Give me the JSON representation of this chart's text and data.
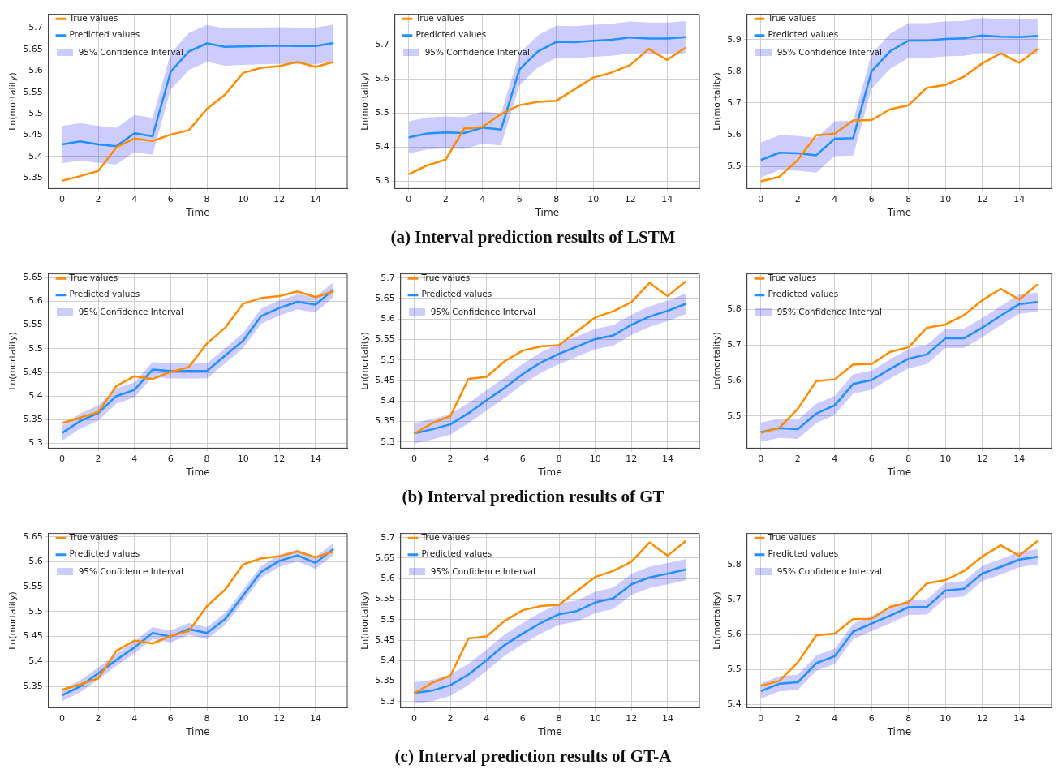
{
  "chart_data": [
    {
      "type": "line",
      "xlabel": "Time",
      "ylabel": "Ln(mortality)",
      "annotations": [
        "95% Confidence Interval"
      ],
      "x": [
        0,
        1,
        2,
        3,
        4,
        5,
        6,
        7,
        8,
        9,
        10,
        11,
        12,
        13,
        14,
        15
      ],
      "xlim": [
        -0.75,
        15.75
      ],
      "xticks": [
        0,
        2,
        4,
        6,
        8,
        10,
        12,
        14
      ],
      "ylim": [
        5.325,
        5.732
      ],
      "yticks": [
        5.35,
        5.4,
        5.45,
        5.5,
        5.55,
        5.6,
        5.65,
        5.7
      ],
      "grid": true,
      "legend": "top left",
      "series": [
        {
          "name": "True values",
          "color": "#ff8c00",
          "values": [
            5.343,
            5.354,
            5.366,
            5.421,
            5.442,
            5.436,
            5.451,
            5.461,
            5.511,
            5.544,
            5.595,
            5.607,
            5.611,
            5.621,
            5.609,
            5.621
          ]
        },
        {
          "name": "Predicted values",
          "color": "#1e90ff",
          "values": [
            5.428,
            5.435,
            5.428,
            5.424,
            5.454,
            5.447,
            5.598,
            5.645,
            5.664,
            5.656,
            5.657,
            5.658,
            5.659,
            5.658,
            5.658,
            5.665
          ],
          "lower": [
            5.384,
            5.39,
            5.385,
            5.381,
            5.41,
            5.404,
            5.556,
            5.602,
            5.621,
            5.612,
            5.614,
            5.615,
            5.616,
            5.615,
            5.615,
            5.622
          ],
          "upper": [
            5.471,
            5.478,
            5.471,
            5.467,
            5.497,
            5.49,
            5.641,
            5.688,
            5.707,
            5.699,
            5.7,
            5.701,
            5.702,
            5.701,
            5.701,
            5.708
          ]
        }
      ]
    },
    {
      "type": "line",
      "xlabel": "Time",
      "ylabel": "Ln(mortality)",
      "annotations": [
        "95% Confidence Interval",
        "(a) Interval prediction results of LSTM"
      ],
      "x": [
        0,
        1,
        2,
        3,
        4,
        5,
        6,
        7,
        8,
        9,
        10,
        11,
        12,
        13,
        14,
        15
      ],
      "xlim": [
        -0.75,
        15.75
      ],
      "xticks": [
        0,
        2,
        4,
        6,
        8,
        10,
        12,
        14
      ],
      "ylim": [
        5.278,
        5.79
      ],
      "yticks": [
        5.3,
        5.4,
        5.5,
        5.6,
        5.7
      ],
      "grid": true,
      "legend": "top left",
      "series": [
        {
          "name": "True values",
          "color": "#ff8c00",
          "values": [
            5.32,
            5.346,
            5.363,
            5.454,
            5.459,
            5.497,
            5.523,
            5.533,
            5.536,
            5.57,
            5.604,
            5.619,
            5.641,
            5.688,
            5.656,
            5.692
          ]
        },
        {
          "name": "Predicted values",
          "color": "#1e90ff",
          "values": [
            5.428,
            5.44,
            5.443,
            5.441,
            5.457,
            5.451,
            5.628,
            5.681,
            5.709,
            5.708,
            5.712,
            5.715,
            5.722,
            5.719,
            5.719,
            5.723
          ],
          "lower": [
            5.381,
            5.393,
            5.396,
            5.394,
            5.41,
            5.404,
            5.581,
            5.634,
            5.662,
            5.661,
            5.665,
            5.668,
            5.675,
            5.672,
            5.672,
            5.676
          ],
          "upper": [
            5.475,
            5.487,
            5.49,
            5.488,
            5.504,
            5.498,
            5.675,
            5.728,
            5.756,
            5.755,
            5.759,
            5.762,
            5.769,
            5.766,
            5.766,
            5.77
          ]
        }
      ]
    },
    {
      "type": "line",
      "xlabel": "Time",
      "ylabel": "Ln(mortality)",
      "annotations": [
        "95% Confidence Interval"
      ],
      "x": [
        0,
        1,
        2,
        3,
        4,
        5,
        6,
        7,
        8,
        9,
        10,
        11,
        12,
        13,
        14,
        15
      ],
      "xlim": [
        -0.75,
        15.75
      ],
      "xticks": [
        0,
        2,
        4,
        6,
        8,
        10,
        12,
        14
      ],
      "ylim": [
        5.43,
        5.98
      ],
      "yticks": [
        5.5,
        5.6,
        5.7,
        5.8,
        5.9
      ],
      "grid": true,
      "legend": "top left",
      "series": [
        {
          "name": "True values",
          "color": "#ff8c00",
          "values": [
            5.453,
            5.467,
            5.52,
            5.598,
            5.603,
            5.645,
            5.646,
            5.68,
            5.693,
            5.748,
            5.757,
            5.783,
            5.825,
            5.857,
            5.827,
            5.87
          ]
        },
        {
          "name": "Predicted values",
          "color": "#1e90ff",
          "values": [
            5.52,
            5.543,
            5.541,
            5.535,
            5.587,
            5.589,
            5.8,
            5.863,
            5.897,
            5.897,
            5.902,
            5.904,
            5.913,
            5.909,
            5.908,
            5.912
          ],
          "lower": [
            5.465,
            5.488,
            5.486,
            5.48,
            5.532,
            5.534,
            5.745,
            5.808,
            5.842,
            5.842,
            5.847,
            5.849,
            5.858,
            5.854,
            5.853,
            5.857
          ],
          "upper": [
            5.575,
            5.598,
            5.596,
            5.59,
            5.642,
            5.644,
            5.855,
            5.918,
            5.952,
            5.952,
            5.957,
            5.959,
            5.968,
            5.964,
            5.963,
            5.967
          ]
        }
      ]
    },
    {
      "type": "line",
      "xlabel": "Time",
      "ylabel": "Ln(mortality)",
      "annotations": [
        "95% Confidence Interval"
      ],
      "x": [
        0,
        1,
        2,
        3,
        4,
        5,
        6,
        7,
        8,
        9,
        10,
        11,
        12,
        13,
        14,
        15
      ],
      "xlim": [
        -0.75,
        15.75
      ],
      "xticks": [
        0,
        2,
        4,
        6,
        8,
        10,
        12,
        14
      ],
      "ylim": [
        5.29,
        5.658
      ],
      "yticks": [
        5.3,
        5.35,
        5.4,
        5.45,
        5.5,
        5.55,
        5.6,
        5.65
      ],
      "grid": true,
      "legend": "top left",
      "series": [
        {
          "name": "True values",
          "color": "#ff8c00",
          "values": [
            5.343,
            5.354,
            5.366,
            5.421,
            5.442,
            5.436,
            5.451,
            5.461,
            5.511,
            5.544,
            5.595,
            5.607,
            5.611,
            5.621,
            5.609,
            5.621
          ]
        },
        {
          "name": "Predicted values",
          "color": "#1e90ff",
          "values": [
            5.322,
            5.347,
            5.364,
            5.4,
            5.413,
            5.456,
            5.453,
            5.453,
            5.453,
            5.485,
            5.517,
            5.569,
            5.586,
            5.599,
            5.593,
            5.625
          ],
          "lower": [
            5.306,
            5.331,
            5.348,
            5.384,
            5.397,
            5.44,
            5.437,
            5.437,
            5.437,
            5.469,
            5.501,
            5.553,
            5.57,
            5.583,
            5.577,
            5.609
          ],
          "upper": [
            5.338,
            5.363,
            5.38,
            5.416,
            5.429,
            5.472,
            5.469,
            5.469,
            5.469,
            5.501,
            5.533,
            5.585,
            5.602,
            5.615,
            5.609,
            5.641
          ]
        }
      ]
    },
    {
      "type": "line",
      "xlabel": "Time",
      "ylabel": "Ln(mortality)",
      "annotations": [
        "95% Confidence Interval",
        "(b) Interval prediction results of GT"
      ],
      "x": [
        0,
        1,
        2,
        3,
        4,
        5,
        6,
        7,
        8,
        9,
        10,
        11,
        12,
        13,
        14,
        15
      ],
      "xlim": [
        -0.75,
        15.75
      ],
      "xticks": [
        0,
        2,
        4,
        6,
        8,
        10,
        12,
        14
      ],
      "ylim": [
        5.285,
        5.71
      ],
      "yticks": [
        5.3,
        5.35,
        5.4,
        5.45,
        5.5,
        5.55,
        5.6,
        5.65,
        5.7
      ],
      "grid": true,
      "legend": "top left",
      "series": [
        {
          "name": "True values",
          "color": "#ff8c00",
          "values": [
            5.32,
            5.346,
            5.363,
            5.454,
            5.459,
            5.497,
            5.523,
            5.533,
            5.536,
            5.57,
            5.604,
            5.619,
            5.641,
            5.688,
            5.656,
            5.692
          ]
        },
        {
          "name": "Predicted values",
          "color": "#1e90ff",
          "values": [
            5.321,
            5.331,
            5.343,
            5.37,
            5.402,
            5.432,
            5.466,
            5.494,
            5.515,
            5.533,
            5.551,
            5.56,
            5.586,
            5.606,
            5.62,
            5.637
          ],
          "lower": [
            5.296,
            5.306,
            5.318,
            5.345,
            5.377,
            5.407,
            5.441,
            5.469,
            5.49,
            5.508,
            5.526,
            5.535,
            5.561,
            5.581,
            5.595,
            5.612
          ],
          "upper": [
            5.346,
            5.356,
            5.368,
            5.395,
            5.427,
            5.457,
            5.491,
            5.519,
            5.54,
            5.558,
            5.576,
            5.585,
            5.611,
            5.631,
            5.645,
            5.662
          ]
        }
      ]
    },
    {
      "type": "line",
      "xlabel": "Time",
      "ylabel": "Ln(mortality)",
      "annotations": [
        "95% Confidence Interval"
      ],
      "x": [
        0,
        1,
        2,
        3,
        4,
        5,
        6,
        7,
        8,
        9,
        10,
        11,
        12,
        13,
        14,
        15
      ],
      "xlim": [
        -0.75,
        15.75
      ],
      "xticks": [
        0,
        2,
        4,
        6,
        8,
        10,
        12,
        14
      ],
      "ylim": [
        5.41,
        5.899
      ],
      "yticks": [
        5.5,
        5.6,
        5.7,
        5.8
      ],
      "grid": true,
      "legend": "top left",
      "series": [
        {
          "name": "True values",
          "color": "#ff8c00",
          "values": [
            5.453,
            5.467,
            5.52,
            5.598,
            5.603,
            5.645,
            5.646,
            5.68,
            5.693,
            5.748,
            5.757,
            5.783,
            5.825,
            5.857,
            5.827,
            5.87
          ]
        },
        {
          "name": "Predicted values",
          "color": "#1e90ff",
          "values": [
            5.455,
            5.466,
            5.463,
            5.507,
            5.53,
            5.59,
            5.601,
            5.632,
            5.661,
            5.673,
            5.718,
            5.718,
            5.748,
            5.782,
            5.814,
            5.82
          ],
          "lower": [
            5.428,
            5.439,
            5.436,
            5.48,
            5.503,
            5.563,
            5.574,
            5.605,
            5.634,
            5.646,
            5.691,
            5.691,
            5.721,
            5.755,
            5.787,
            5.793
          ],
          "upper": [
            5.482,
            5.493,
            5.49,
            5.534,
            5.557,
            5.617,
            5.628,
            5.659,
            5.688,
            5.7,
            5.745,
            5.745,
            5.775,
            5.809,
            5.841,
            5.847
          ]
        }
      ]
    },
    {
      "type": "line",
      "xlabel": "Time",
      "ylabel": "Ln(mortality)",
      "annotations": [
        "95% Confidence Interval"
      ],
      "x": [
        0,
        1,
        2,
        3,
        4,
        5,
        6,
        7,
        8,
        9,
        10,
        11,
        12,
        13,
        14,
        15
      ],
      "xlim": [
        -0.75,
        15.75
      ],
      "xticks": [
        0,
        2,
        4,
        6,
        8,
        10,
        12,
        14
      ],
      "ylim": [
        5.307,
        5.657
      ],
      "yticks": [
        5.35,
        5.4,
        5.45,
        5.5,
        5.55,
        5.6,
        5.65
      ],
      "grid": true,
      "legend": "top left",
      "series": [
        {
          "name": "True values",
          "color": "#ff8c00",
          "values": [
            5.343,
            5.354,
            5.366,
            5.421,
            5.442,
            5.436,
            5.451,
            5.461,
            5.511,
            5.544,
            5.595,
            5.607,
            5.611,
            5.621,
            5.609,
            5.621
          ]
        },
        {
          "name": "Predicted values",
          "color": "#1e90ff",
          "values": [
            5.332,
            5.35,
            5.376,
            5.403,
            5.428,
            5.457,
            5.45,
            5.465,
            5.457,
            5.485,
            5.532,
            5.58,
            5.602,
            5.613,
            5.598,
            5.626
          ],
          "lower": [
            5.32,
            5.338,
            5.364,
            5.391,
            5.416,
            5.445,
            5.438,
            5.453,
            5.445,
            5.473,
            5.52,
            5.568,
            5.59,
            5.601,
            5.586,
            5.614
          ],
          "upper": [
            5.344,
            5.362,
            5.388,
            5.415,
            5.44,
            5.469,
            5.462,
            5.477,
            5.469,
            5.497,
            5.544,
            5.592,
            5.614,
            5.625,
            5.61,
            5.638
          ]
        }
      ]
    },
    {
      "type": "line",
      "xlabel": "Time",
      "ylabel": "Ln(mortality)",
      "annotations": [
        "95% Confidence Interval",
        "(c) Interval prediction results of GT-A"
      ],
      "x": [
        0,
        1,
        2,
        3,
        4,
        5,
        6,
        7,
        8,
        9,
        10,
        11,
        12,
        13,
        14,
        15
      ],
      "xlim": [
        -0.75,
        15.75
      ],
      "xticks": [
        0,
        2,
        4,
        6,
        8,
        10,
        12,
        14
      ],
      "ylim": [
        5.285,
        5.71
      ],
      "yticks": [
        5.3,
        5.35,
        5.4,
        5.45,
        5.5,
        5.55,
        5.6,
        5.65,
        5.7
      ],
      "grid": true,
      "legend": "top left",
      "series": [
        {
          "name": "True values",
          "color": "#ff8c00",
          "values": [
            5.32,
            5.346,
            5.363,
            5.454,
            5.459,
            5.497,
            5.523,
            5.533,
            5.536,
            5.57,
            5.604,
            5.619,
            5.641,
            5.688,
            5.656,
            5.692
          ]
        },
        {
          "name": "Predicted values",
          "color": "#1e90ff",
          "values": [
            5.321,
            5.327,
            5.34,
            5.366,
            5.401,
            5.438,
            5.466,
            5.492,
            5.513,
            5.521,
            5.542,
            5.552,
            5.586,
            5.603,
            5.612,
            5.622
          ],
          "lower": [
            5.295,
            5.301,
            5.314,
            5.34,
            5.375,
            5.412,
            5.44,
            5.466,
            5.487,
            5.495,
            5.516,
            5.526,
            5.56,
            5.577,
            5.586,
            5.596
          ],
          "upper": [
            5.347,
            5.353,
            5.366,
            5.392,
            5.427,
            5.464,
            5.492,
            5.518,
            5.539,
            5.547,
            5.568,
            5.578,
            5.612,
            5.629,
            5.638,
            5.648
          ]
        }
      ]
    },
    {
      "type": "line",
      "xlabel": "Time",
      "ylabel": "Ln(mortality)",
      "annotations": [
        "95% Confidence Interval"
      ],
      "x": [
        0,
        1,
        2,
        3,
        4,
        5,
        6,
        7,
        8,
        9,
        10,
        11,
        12,
        13,
        14,
        15
      ],
      "xlim": [
        -0.75,
        15.75
      ],
      "xticks": [
        0,
        2,
        4,
        6,
        8,
        10,
        12,
        14
      ],
      "ylim": [
        5.39,
        5.891
      ],
      "yticks": [
        5.4,
        5.5,
        5.6,
        5.7,
        5.8
      ],
      "grid": true,
      "legend": "top left",
      "series": [
        {
          "name": "True values",
          "color": "#ff8c00",
          "values": [
            5.453,
            5.467,
            5.52,
            5.598,
            5.603,
            5.645,
            5.646,
            5.68,
            5.693,
            5.748,
            5.757,
            5.783,
            5.825,
            5.857,
            5.827,
            5.87
          ]
        },
        {
          "name": "Predicted values",
          "color": "#1e90ff",
          "values": [
            5.438,
            5.459,
            5.463,
            5.518,
            5.538,
            5.609,
            5.632,
            5.655,
            5.679,
            5.68,
            5.727,
            5.732,
            5.776,
            5.795,
            5.816,
            5.824
          ],
          "lower": [
            5.416,
            5.437,
            5.441,
            5.496,
            5.516,
            5.587,
            5.61,
            5.633,
            5.657,
            5.658,
            5.705,
            5.71,
            5.754,
            5.773,
            5.794,
            5.802
          ],
          "upper": [
            5.46,
            5.481,
            5.485,
            5.54,
            5.56,
            5.631,
            5.654,
            5.677,
            5.701,
            5.702,
            5.749,
            5.754,
            5.798,
            5.817,
            5.838,
            5.846
          ]
        }
      ]
    }
  ]
}
